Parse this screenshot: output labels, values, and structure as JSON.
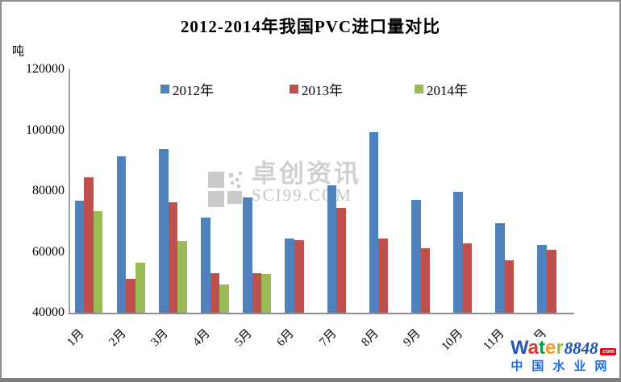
{
  "chart_data": {
    "type": "bar",
    "title": "2012-2014年我国PVC进口量对比",
    "ylabel": "吨",
    "xlabel": "",
    "ylim": [
      40000,
      120000
    ],
    "yticks": [
      120000,
      100000,
      80000,
      60000,
      40000
    ],
    "grid": false,
    "legend_position": "top",
    "categories": [
      "1月",
      "2月",
      "3月",
      "4月",
      "5月",
      "6月",
      "7月",
      "8月",
      "9月",
      "10月",
      "11月",
      "12月"
    ],
    "series": [
      {
        "name": "2012年",
        "color": "#4f81bd",
        "values": [
          76800,
          91300,
          93900,
          71300,
          77800,
          64300,
          81800,
          99300,
          77000,
          79700,
          69400,
          62300
        ]
      },
      {
        "name": "2013年",
        "color": "#c0504d",
        "values": [
          84400,
          51000,
          76400,
          53000,
          53100,
          63800,
          74500,
          64500,
          61200,
          62900,
          57300,
          60600
        ]
      },
      {
        "name": "2014年",
        "color": "#9bbb59",
        "values": [
          73300,
          56500,
          63500,
          49400,
          52600,
          null,
          null,
          null,
          null,
          null,
          null,
          null
        ]
      }
    ]
  },
  "watermark": {
    "name_text": "卓创资讯",
    "site_text": "SCI99.COM"
  },
  "logo": {
    "word_letters": [
      {
        "char": "W",
        "color": "#2456c4"
      },
      {
        "char": "a",
        "color": "#e2382b"
      },
      {
        "char": "t",
        "color": "#0b9e4d"
      },
      {
        "char": "e",
        "color": "#f59a1d"
      },
      {
        "char": "r",
        "color": "#8cc63e"
      }
    ],
    "number": "8848",
    "number_color": "#1f4fc0",
    "tld": ".com",
    "tld_bg": "#e60012",
    "subtitle": "中国水业网",
    "subtitle_color": "#1d6fe0"
  }
}
